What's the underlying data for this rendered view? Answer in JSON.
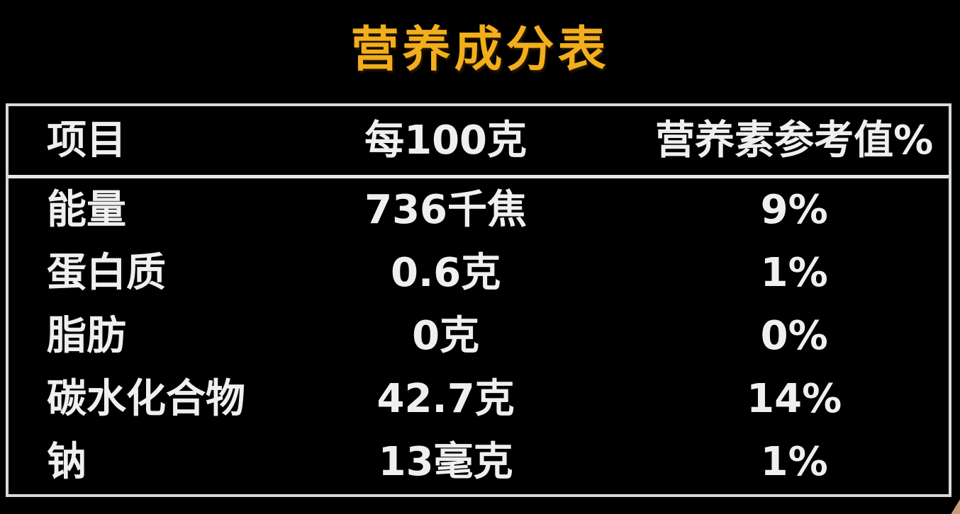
{
  "title": "营养成分表",
  "theme": {
    "background": "#000000",
    "title_color": "#F2AE1C",
    "text_color": "#EFEFEF",
    "border_color": "#D9D9D9"
  },
  "table": {
    "columns": {
      "item": "项目",
      "per100g": "每100克",
      "nrv": "营养素参考值%"
    },
    "rows": [
      {
        "item": "能量",
        "per100g": "736千焦",
        "nrv": "9%"
      },
      {
        "item": "蛋白质",
        "per100g": "0.6克",
        "nrv": "1%"
      },
      {
        "item": "脂肪",
        "per100g": "0克",
        "nrv": "0%"
      },
      {
        "item": "碳水化合物",
        "per100g": "42.7克",
        "nrv": "14%"
      },
      {
        "item": "钠",
        "per100g": "13毫克",
        "nrv": "1%"
      }
    ]
  }
}
